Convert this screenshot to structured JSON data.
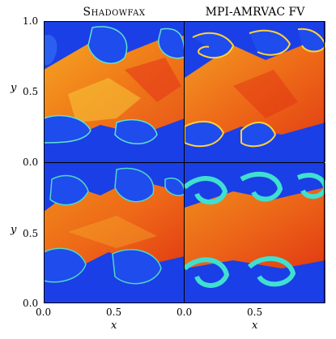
{
  "figure": {
    "col_titles": [
      "Shadowfax",
      "MPI-AMRVAC FV"
    ],
    "y_ticks": [
      "1.0",
      "0.5",
      "0.0"
    ],
    "y_ticks_bottom": [
      "0.5",
      "0.0"
    ],
    "x_ticks": [
      "0.0",
      "0.5",
      "0.0",
      "0.5"
    ],
    "xlabel": "x",
    "ylabel": "y"
  },
  "colors": {
    "background_blue": "#1a3fe6",
    "warm_orange": "#f28a1a",
    "hot_red": "#e33010",
    "yellow": "#f5d21e",
    "cyan": "#3ee0d0"
  }
}
